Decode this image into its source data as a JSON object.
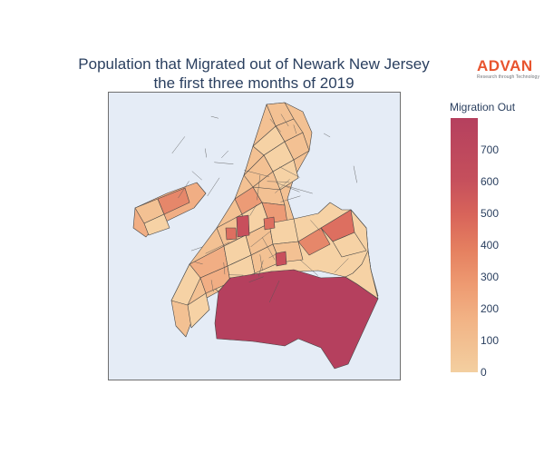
{
  "title_line1": "Population that Migrated out of Newark New Jersey",
  "title_line2": "the first three months of 2019",
  "logo": {
    "word": "ADVAN",
    "tagline": "Research through Technology",
    "color": "#e8542e"
  },
  "colorbar": {
    "title": "Migration Out",
    "ticks": [
      "700",
      "600",
      "500",
      "400",
      "300",
      "200",
      "100",
      "0"
    ],
    "min": 0,
    "max": 800,
    "color_low": "#f3cfa0",
    "color_high": "#b5405e"
  },
  "map": {
    "background": "#e5ecf6",
    "border_color": "#444444",
    "large_region_color": "#b5405e",
    "east_region_color": "#f6d2a5"
  }
}
